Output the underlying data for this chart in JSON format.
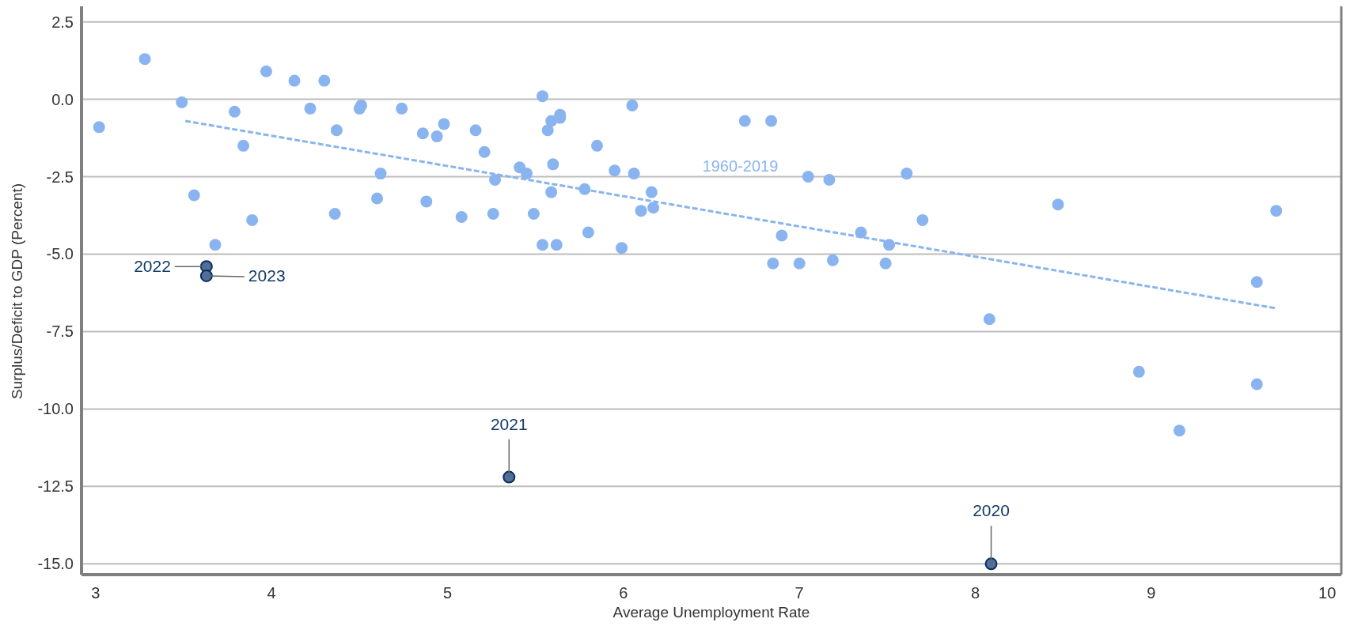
{
  "chart_data": {
    "type": "scatter",
    "xlabel": "Average Unemployment Rate",
    "ylabel": "Surplus/Deficit to GDP (Percent)",
    "xlim": [
      2.92,
      10.08
    ],
    "xticks": [
      3,
      4,
      5,
      6,
      7,
      8,
      9,
      10
    ],
    "ylim": [
      -15.35,
      2.95
    ],
    "yticks": [
      {
        "value": 2.5,
        "label": "2.5"
      },
      {
        "value": 0,
        "label": "0.0"
      },
      {
        "value": -2.5,
        "label": "-2.5"
      },
      {
        "value": -5,
        "label": "-5.0"
      },
      {
        "value": -7.5,
        "label": "-7.5"
      },
      {
        "value": -10,
        "label": "-10.0"
      },
      {
        "value": -12.5,
        "label": "-12.5"
      },
      {
        "value": -15,
        "label": "-15.0"
      }
    ],
    "grid": "y",
    "marker": "circle",
    "series": [
      {
        "color": "#8ab4f0",
        "x": [
          3.02,
          3.28,
          3.49,
          3.56,
          3.68,
          3.79,
          3.84,
          3.89,
          3.97,
          4.13,
          4.22,
          4.3,
          4.36,
          4.37,
          4.5,
          4.51,
          4.6,
          4.62,
          4.74,
          4.86,
          4.88,
          4.94,
          4.98,
          5.08,
          5.16,
          5.21,
          5.26,
          5.27,
          5.41,
          5.45,
          5.49,
          5.54,
          5.54,
          5.57,
          5.59,
          5.59,
          5.6,
          5.62,
          5.64,
          5.64,
          5.78,
          5.8,
          5.85,
          5.95,
          5.99,
          6.05,
          6.06,
          6.1,
          6.16,
          6.17,
          6.69,
          6.84,
          6.85,
          6.9,
          7.0,
          7.05,
          7.17,
          7.19,
          7.35,
          7.49,
          7.51,
          7.61,
          7.7,
          8.08,
          8.47,
          8.93,
          9.16,
          9.6,
          9.6,
          9.71
        ],
        "values": [
          -0.9,
          1.3,
          -0.1,
          -3.1,
          -4.7,
          -0.4,
          -1.5,
          -3.9,
          0.9,
          0.6,
          -0.3,
          0.6,
          -3.7,
          -1.0,
          -0.3,
          -0.2,
          -3.2,
          -2.4,
          -0.3,
          -1.1,
          -3.3,
          -1.2,
          -0.8,
          -3.8,
          -1.0,
          -1.7,
          -3.7,
          -2.6,
          -2.2,
          -2.4,
          -3.7,
          -4.7,
          0.1,
          -1.0,
          -0.7,
          -3.0,
          -2.1,
          -4.7,
          -0.5,
          -0.6,
          -2.9,
          -4.3,
          -1.5,
          -2.3,
          -4.8,
          -0.2,
          -2.4,
          -3.6,
          -3.0,
          -3.5,
          -0.7,
          -0.7,
          -5.3,
          -4.4,
          -5.3,
          -2.5,
          -2.6,
          -5.2,
          -4.3,
          -5.3,
          -4.7,
          -2.4,
          -3.9,
          -7.1,
          -3.4,
          -8.8,
          -10.7,
          -5.9,
          -9.2,
          -3.6
        ]
      },
      {
        "type": "line",
        "name": "1960-2019",
        "color": "#8ab4f0",
        "line_style": "dashed",
        "marker": "none",
        "x": [
          3.51,
          9.71
        ],
        "values": [
          -0.7,
          -6.75
        ]
      },
      {
        "color": "#4f6fa0",
        "x": [
          3.63,
          3.63,
          5.35,
          8.09
        ],
        "values": [
          -5.4,
          -5.7,
          -12.2,
          -15.0
        ]
      }
    ],
    "annotations": [
      {
        "text": "2022",
        "x": 3.63,
        "y": -5.4
      },
      {
        "text": "2023",
        "x": 3.63,
        "y": -5.7
      },
      {
        "text": "2021",
        "x": 5.35,
        "y": -12.2
      },
      {
        "text": "2020",
        "x": 8.09,
        "y": -15.0
      }
    ]
  }
}
